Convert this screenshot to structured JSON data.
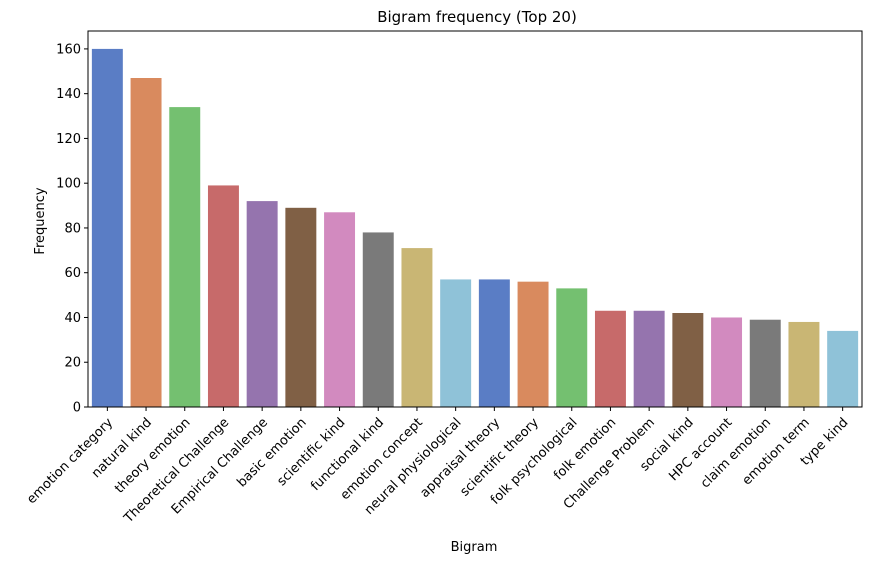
{
  "chart_data": {
    "type": "bar",
    "title": "Bigram frequency (Top 20)",
    "xlabel": "Bigram",
    "ylabel": "Frequency",
    "ylim": [
      0,
      168
    ],
    "yticks": [
      0,
      20,
      40,
      60,
      80,
      100,
      120,
      140,
      160
    ],
    "grid": false,
    "categories": [
      "emotion category",
      "natural kind",
      "theory emotion",
      "Theoretical Challenge",
      "Empirical Challenge",
      "basic emotion",
      "scientific kind",
      "functional kind",
      "emotion concept",
      "neural physiological",
      "appraisal theory",
      "scientific theory",
      "folk psychological",
      "folk emotion",
      "Challenge Problem",
      "social kind",
      "HPC account",
      "claim emotion",
      "emotion term",
      "type kind"
    ],
    "values": [
      160,
      147,
      134,
      99,
      92,
      89,
      87,
      78,
      71,
      57,
      57,
      56,
      53,
      43,
      43,
      42,
      40,
      39,
      38,
      34
    ],
    "colors": [
      "#5a7dc5",
      "#d98a5e",
      "#74c070",
      "#c76a6a",
      "#9574ae",
      "#806045",
      "#d28abf",
      "#7a7a7a",
      "#c9b674",
      "#8fc2d8"
    ]
  }
}
